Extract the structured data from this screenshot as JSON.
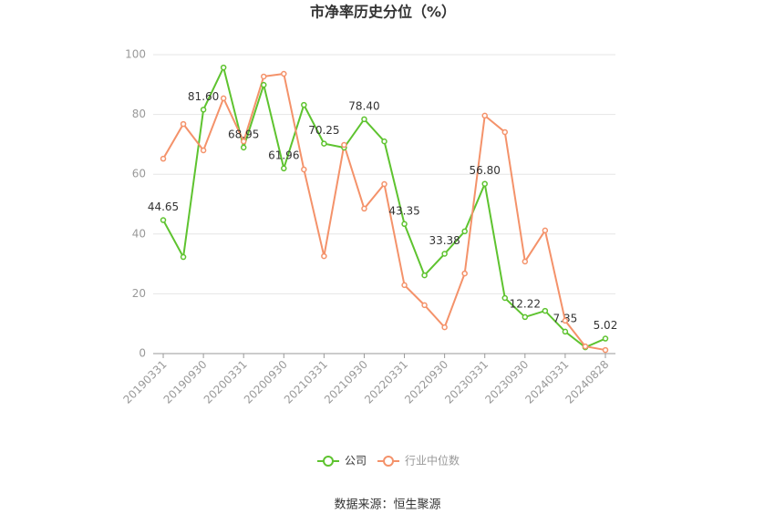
{
  "chart_data": {
    "type": "line",
    "title": "市净率历史分位（%）",
    "categories": [
      "20190331",
      null,
      "20190930",
      null,
      "20200331",
      null,
      "20200930",
      null,
      "20210331",
      null,
      "20210930",
      null,
      "20220331",
      null,
      "20220930",
      null,
      "20230331",
      null,
      "20230930",
      null,
      "20240331",
      null,
      "20240828"
    ],
    "series": [
      {
        "name": "公司",
        "color": "#5ec32f",
        "values": [
          44.65,
          32.3,
          81.6,
          95.7,
          68.95,
          89.9,
          61.96,
          83.2,
          70.25,
          68.9,
          78.4,
          71.0,
          43.35,
          26.2,
          33.38,
          40.9,
          56.8,
          18.6,
          12.22,
          14.3,
          7.35,
          2.1,
          5.02
        ],
        "value_labels": [
          "44.65",
          null,
          "81.60",
          null,
          "68.95",
          null,
          "61.96",
          null,
          "70.25",
          null,
          "78.40",
          null,
          "43.35",
          null,
          "33.38",
          null,
          "56.80",
          null,
          "12.22",
          null,
          "7.35",
          null,
          "5.02"
        ]
      },
      {
        "name": "行业中位数",
        "color": "#f4926a",
        "values": [
          65.2,
          76.8,
          68.0,
          85.4,
          71.0,
          92.7,
          93.6,
          61.6,
          32.6,
          69.8,
          48.5,
          56.7,
          22.9,
          16.2,
          8.8,
          26.8,
          79.6,
          74.1,
          30.8,
          41.2,
          11.0,
          2.4,
          1.2
        ]
      }
    ],
    "ylim": [
      0,
      100
    ],
    "yticks": [
      0,
      20,
      40,
      60,
      80,
      100
    ],
    "grid": true,
    "legend": "bottom",
    "source": "数据来源：恒生聚源"
  }
}
